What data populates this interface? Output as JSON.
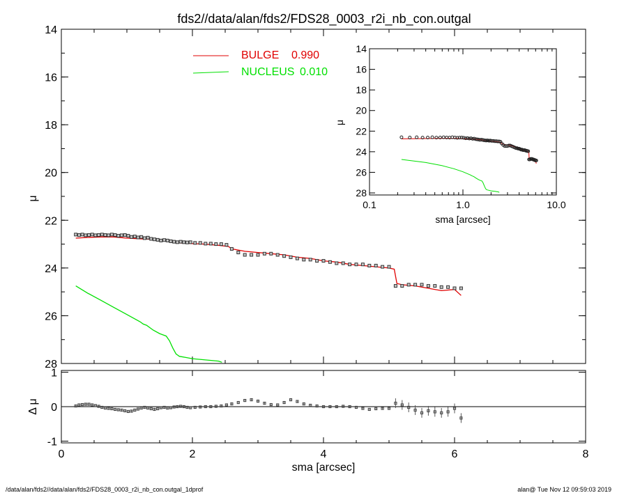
{
  "chart_data": {
    "type": "line",
    "title": "fds2//data/alan/fds2/FDS28_0003_r2i_nb_con.outgal",
    "footer_left": "/data/alan/fds2//data/alan/fds2/FDS28_0003_r2i_nb_con.outgal_1dprof",
    "footer_right": "alan@  Tue Nov 12 09:59:03 2019",
    "main": {
      "xlabel": "sma [arcsec]",
      "ylabel": "μ",
      "xlim": [
        0,
        8
      ],
      "ylim": [
        28,
        14
      ],
      "xticks": [
        "0",
        "2",
        "4",
        "6",
        "8"
      ],
      "yticks": [
        "14",
        "16",
        "18",
        "20",
        "22",
        "24",
        "26",
        "28"
      ],
      "legend": [
        {
          "label": "BULGE",
          "value": "0.990",
          "color": "#e00000"
        },
        {
          "label": "NUCLEUS",
          "value": "0.010",
          "color": "#00e000"
        }
      ],
      "series": [
        {
          "name": "BULGE",
          "color": "#e00000",
          "x": [
            0.22,
            0.4,
            0.6,
            0.8,
            1.0,
            1.2,
            1.4,
            1.6,
            1.8,
            2.0,
            2.2,
            2.4,
            2.55,
            2.6,
            2.8,
            3.0,
            3.2,
            3.4,
            3.6,
            3.8,
            4.0,
            4.2,
            4.4,
            4.6,
            4.8,
            5.0,
            5.08,
            5.12,
            5.2,
            5.4,
            5.6,
            5.8,
            6.0,
            6.1
          ],
          "y": [
            22.75,
            22.72,
            22.7,
            22.7,
            22.75,
            22.78,
            22.8,
            22.85,
            22.95,
            22.98,
            23.0,
            23.05,
            23.1,
            23.2,
            23.3,
            23.35,
            23.4,
            23.45,
            23.55,
            23.6,
            23.7,
            23.75,
            23.85,
            23.9,
            23.95,
            24.0,
            24.05,
            24.65,
            24.7,
            24.75,
            24.85,
            24.95,
            24.9,
            25.15
          ]
        },
        {
          "name": "NUCLEUS",
          "color": "#00e000",
          "x": [
            0.22,
            0.4,
            0.6,
            0.8,
            1.0,
            1.2,
            1.25,
            1.3,
            1.4,
            1.5,
            1.55,
            1.6,
            1.65,
            1.7,
            1.75,
            1.8,
            1.9,
            2.0,
            2.2,
            2.4,
            2.45
          ],
          "y": [
            24.75,
            25.05,
            25.35,
            25.65,
            25.95,
            26.25,
            26.35,
            26.4,
            26.6,
            26.75,
            26.8,
            26.85,
            27.05,
            27.35,
            27.6,
            27.7,
            27.75,
            27.8,
            27.85,
            27.9,
            27.95
          ]
        }
      ],
      "measured": {
        "x": [
          0.22,
          0.27,
          0.32,
          0.37,
          0.42,
          0.47,
          0.52,
          0.57,
          0.62,
          0.67,
          0.72,
          0.77,
          0.82,
          0.87,
          0.92,
          0.97,
          1.02,
          1.07,
          1.12,
          1.17,
          1.22,
          1.27,
          1.32,
          1.37,
          1.42,
          1.47,
          1.52,
          1.57,
          1.62,
          1.67,
          1.72,
          1.77,
          1.82,
          1.87,
          1.92,
          1.97,
          2.04,
          2.12,
          2.2,
          2.28,
          2.36,
          2.44,
          2.52,
          2.6,
          2.7,
          2.8,
          2.9,
          3.0,
          3.1,
          3.2,
          3.3,
          3.4,
          3.5,
          3.6,
          3.7,
          3.8,
          3.9,
          4.0,
          4.1,
          4.2,
          4.3,
          4.4,
          4.5,
          4.6,
          4.7,
          4.8,
          4.9,
          5.0,
          5.1,
          5.2,
          5.3,
          5.4,
          5.5,
          5.6,
          5.7,
          5.8,
          5.9,
          6.0,
          6.1
        ],
        "y": [
          22.6,
          22.62,
          22.6,
          22.63,
          22.62,
          22.6,
          22.63,
          22.62,
          22.6,
          22.62,
          22.63,
          22.6,
          22.62,
          22.65,
          22.63,
          22.62,
          22.65,
          22.7,
          22.68,
          22.72,
          22.7,
          22.75,
          22.73,
          22.78,
          22.8,
          22.82,
          22.85,
          22.83,
          22.85,
          22.88,
          22.9,
          22.92,
          22.9,
          22.92,
          22.93,
          22.92,
          22.95,
          22.95,
          22.98,
          22.98,
          23.0,
          23.0,
          23.03,
          23.2,
          23.35,
          23.45,
          23.45,
          23.45,
          23.4,
          23.4,
          23.45,
          23.5,
          23.55,
          23.6,
          23.65,
          23.65,
          23.7,
          23.7,
          23.75,
          23.8,
          23.8,
          23.85,
          23.85,
          23.85,
          23.9,
          23.9,
          23.95,
          23.95,
          24.75,
          24.75,
          24.7,
          24.7,
          24.7,
          24.75,
          24.75,
          24.8,
          24.8,
          24.85,
          24.85
        ]
      }
    },
    "inset": {
      "xlabel": "sma [arcsec]",
      "ylabel": "μ",
      "xscale": "log",
      "xlim": [
        0.1,
        10
      ],
      "ylim": [
        28.2,
        14
      ],
      "xticks": [
        "0.1",
        "1.0",
        "10.0"
      ],
      "yticks": [
        "14",
        "16",
        "18",
        "20",
        "22",
        "24",
        "26",
        "28"
      ]
    },
    "residual": {
      "ylabel": "Δ μ",
      "ylim": [
        -1.05,
        1.05
      ],
      "yticks": [
        "1",
        "0",
        "-1"
      ],
      "x": [
        0.22,
        0.27,
        0.32,
        0.37,
        0.42,
        0.47,
        0.52,
        0.57,
        0.62,
        0.67,
        0.72,
        0.77,
        0.82,
        0.87,
        0.92,
        0.97,
        1.02,
        1.07,
        1.12,
        1.17,
        1.22,
        1.27,
        1.32,
        1.37,
        1.42,
        1.47,
        1.52,
        1.57,
        1.62,
        1.67,
        1.72,
        1.77,
        1.82,
        1.87,
        1.92,
        1.97,
        2.04,
        2.12,
        2.2,
        2.28,
        2.36,
        2.44,
        2.52,
        2.6,
        2.7,
        2.8,
        2.9,
        3.0,
        3.1,
        3.2,
        3.3,
        3.4,
        3.5,
        3.6,
        3.7,
        3.8,
        3.9,
        4.0,
        4.1,
        4.2,
        4.3,
        4.4,
        4.5,
        4.6,
        4.7,
        4.8,
        4.9,
        5.0,
        5.1,
        5.2,
        5.3,
        5.4,
        5.5,
        5.6,
        5.7,
        5.8,
        5.9,
        6.0,
        6.1
      ],
      "y": [
        0.02,
        0.05,
        0.06,
        0.07,
        0.07,
        0.05,
        0.03,
        0.01,
        -0.02,
        -0.04,
        -0.05,
        -0.06,
        -0.08,
        -0.09,
        -0.1,
        -0.12,
        -0.14,
        -0.13,
        -0.1,
        -0.07,
        -0.04,
        -0.02,
        -0.04,
        -0.06,
        -0.08,
        -0.06,
        -0.03,
        -0.02,
        -0.04,
        -0.03,
        -0.01,
        0.0,
        0.01,
        0.0,
        -0.02,
        -0.03,
        -0.02,
        -0.01,
        0.0,
        0.0,
        0.01,
        0.02,
        0.05,
        0.08,
        0.12,
        0.18,
        0.2,
        0.16,
        0.1,
        0.06,
        0.05,
        0.12,
        0.2,
        0.15,
        0.08,
        0.04,
        0.02,
        0.0,
        0.0,
        0.0,
        0.01,
        0.0,
        -0.02,
        -0.05,
        -0.08,
        -0.06,
        -0.05,
        -0.05,
        0.1,
        0.05,
        -0.02,
        -0.1,
        -0.18,
        -0.12,
        -0.15,
        -0.18,
        -0.15,
        -0.05,
        -0.33
      ]
    }
  }
}
